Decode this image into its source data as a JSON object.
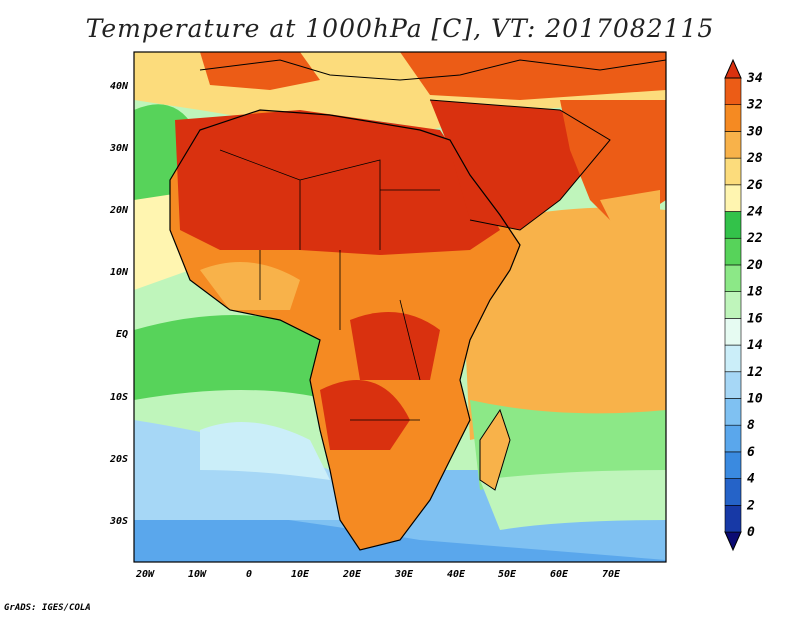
{
  "title": "Temperature at 1000hPa [C], VT: 2017082115",
  "credit": "GrADS: IGES/COLA",
  "map": {
    "region": "Africa and Arabian Peninsula",
    "variable": "Temperature at 1000hPa",
    "units": "C",
    "valid_time": "2017082115",
    "lon_range": [
      -23,
      80
    ],
    "lat_range": [
      -37,
      45
    ],
    "lat_ticks": [
      "40N",
      "30N",
      "20N",
      "10N",
      "EQ",
      "10S",
      "20S",
      "30S"
    ],
    "lon_ticks": [
      "20W",
      "10W",
      "0",
      "10E",
      "20E",
      "30E",
      "40E",
      "50E",
      "60E",
      "70E"
    ]
  },
  "colorbar": {
    "levels": [
      "0",
      "2",
      "4",
      "6",
      "8",
      "10",
      "12",
      "14",
      "16",
      "18",
      "20",
      "22",
      "24",
      "26",
      "28",
      "30",
      "32",
      "34"
    ],
    "colors": [
      "#0b0b73",
      "#1739a6",
      "#2563c8",
      "#3a8ae0",
      "#5aa7ec",
      "#7fc1f2",
      "#a6d7f6",
      "#cbeef9",
      "#e6fbf2",
      "#bff5bb",
      "#8ce887",
      "#57d35a",
      "#33c24a",
      "#fff5b0",
      "#fcdc7c",
      "#f8b24a",
      "#f58a22",
      "#ec5c16",
      "#d9310f"
    ]
  }
}
